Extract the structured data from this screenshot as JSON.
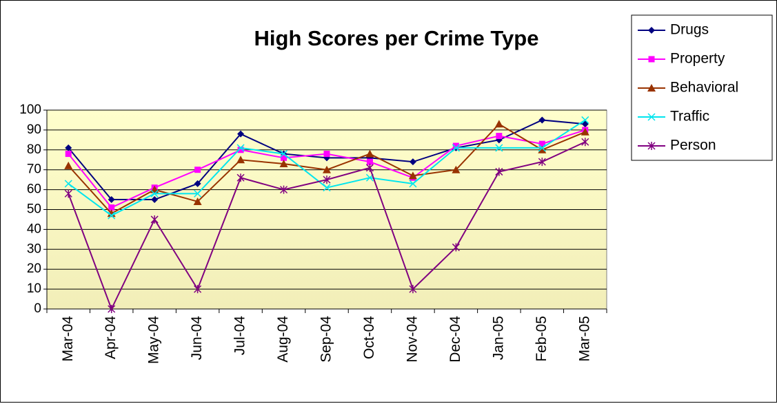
{
  "chart_data": {
    "type": "line",
    "title": "High Scores per Crime Type",
    "categories": [
      "Mar-04",
      "Apr-04",
      "May-04",
      "Jun-04",
      "Jul-04",
      "Aug-04",
      "Sep-04",
      "Oct-04",
      "Nov-04",
      "Dec-04",
      "Jan-05",
      "Feb-05",
      "Mar-05"
    ],
    "series": [
      {
        "name": "Drugs",
        "color": "#000080",
        "marker": "diamond",
        "values": [
          81,
          55,
          55,
          63,
          88,
          78,
          76,
          76,
          74,
          81,
          85,
          95,
          93
        ]
      },
      {
        "name": "Property",
        "color": "#ff00ff",
        "marker": "square",
        "values": [
          78,
          51,
          61,
          70,
          80,
          76,
          78,
          74,
          66,
          82,
          87,
          83,
          90
        ]
      },
      {
        "name": "Behavioral",
        "color": "#993300",
        "marker": "triangle",
        "values": [
          72,
          48,
          60,
          54,
          75,
          73,
          70,
          78,
          67,
          70,
          93,
          80,
          89
        ]
      },
      {
        "name": "Traffic",
        "color": "#00e5ee",
        "marker": "x",
        "values": [
          63,
          47,
          58,
          58,
          81,
          78,
          61,
          66,
          63,
          81,
          81,
          81,
          95
        ]
      },
      {
        "name": "Person",
        "color": "#800080",
        "marker": "star",
        "values": [
          58,
          0,
          45,
          10,
          66,
          60,
          65,
          71,
          10,
          31,
          69,
          74,
          84
        ]
      }
    ],
    "ylim": [
      0,
      100
    ],
    "yticks": [
      0,
      10,
      20,
      30,
      40,
      50,
      60,
      70,
      80,
      90,
      100
    ],
    "grid": true,
    "legend": "right"
  }
}
